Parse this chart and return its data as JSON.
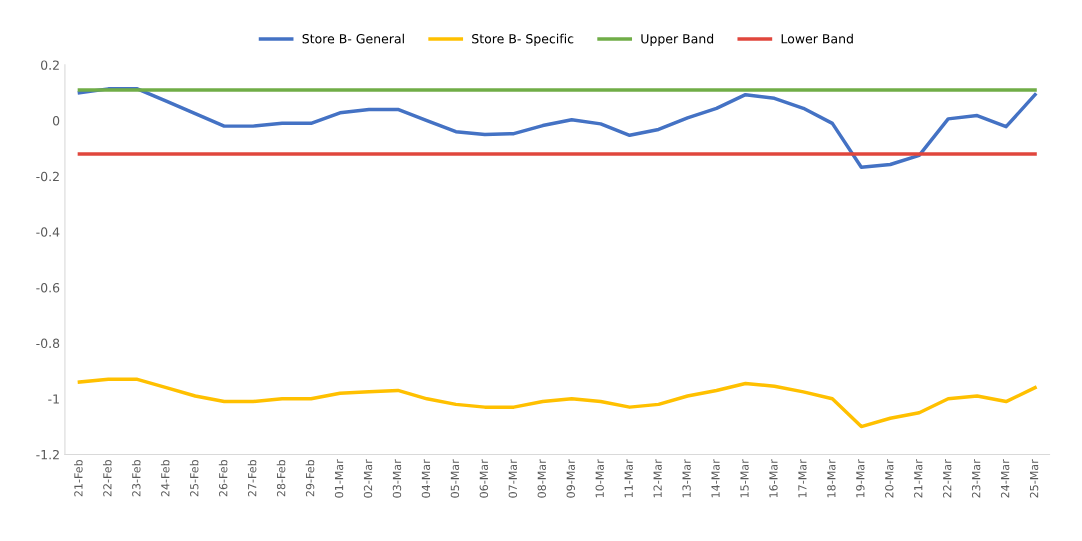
{
  "chart_data": {
    "type": "line",
    "categories": [
      "21-Feb",
      "22-Feb",
      "23-Feb",
      "24-Feb",
      "25-Feb",
      "26-Feb",
      "27-Feb",
      "28-Feb",
      "29-Feb",
      "01-Mar",
      "02-Mar",
      "03-Mar",
      "04-Mar",
      "05-Mar",
      "06-Mar",
      "07-Mar",
      "08-Mar",
      "09-Mar",
      "10-Mar",
      "11-Mar",
      "12-Mar",
      "13-Mar",
      "14-Mar",
      "15-Mar",
      "16-Mar",
      "17-Mar",
      "18-Mar",
      "19-Mar",
      "20-Mar",
      "21-Mar",
      "22-Mar",
      "23-Mar",
      "24-Mar",
      "25-Mar"
    ],
    "series": [
      {
        "name": "Store B- General",
        "color": "#4472c4",
        "values": [
          0.1,
          0.114,
          0.114,
          0.07,
          0.025,
          -0.02,
          -0.02,
          -0.01,
          -0.01,
          0.028,
          0.04,
          0.04,
          0,
          -0.04,
          -0.05,
          -0.047,
          -0.018,
          0.003,
          -0.012,
          -0.053,
          -0.032,
          0.01,
          0.044,
          0.093,
          0.08,
          0.044,
          -0.01,
          -0.168,
          -0.158,
          -0.125,
          0.006,
          0.018,
          -0.022,
          0.093
        ]
      },
      {
        "name": "Store B- Specific",
        "color": "#ffc000",
        "values": [
          -0.94,
          -0.93,
          -0.93,
          -0.96,
          -0.99,
          -1.01,
          -1.01,
          -1.0,
          -1.0,
          -0.98,
          -0.975,
          -0.97,
          -1.0,
          -1.02,
          -1.03,
          -1.03,
          -1.01,
          -1.0,
          -1.01,
          -1.03,
          -1.02,
          -0.99,
          -0.97,
          -0.945,
          -0.955,
          -0.975,
          -1.0,
          -1.1,
          -1.07,
          -1.05,
          -1.0,
          -0.99,
          -1.01,
          -0.96
        ]
      },
      {
        "name": "Upper Band",
        "color": "#70ad47",
        "values": [
          0.11,
          0.11,
          0.11,
          0.11,
          0.11,
          0.11,
          0.11,
          0.11,
          0.11,
          0.11,
          0.11,
          0.11,
          0.11,
          0.11,
          0.11,
          0.11,
          0.11,
          0.11,
          0.11,
          0.11,
          0.11,
          0.11,
          0.11,
          0.11,
          0.11,
          0.11,
          0.11,
          0.11,
          0.11,
          0.11,
          0.11,
          0.11,
          0.11,
          0.11
        ]
      },
      {
        "name": "Lower Band",
        "color": "#e0463c",
        "values": [
          -0.12,
          -0.12,
          -0.12,
          -0.12,
          -0.12,
          -0.12,
          -0.12,
          -0.12,
          -0.12,
          -0.12,
          -0.12,
          -0.12,
          -0.12,
          -0.12,
          -0.12,
          -0.12,
          -0.12,
          -0.12,
          -0.12,
          -0.12,
          -0.12,
          -0.12,
          -0.12,
          -0.12,
          -0.12,
          -0.12,
          -0.12,
          -0.12,
          -0.12,
          -0.12,
          -0.12,
          -0.12,
          -0.12,
          -0.12
        ]
      }
    ],
    "ylim": [
      -1.2,
      0.2
    ],
    "yticks": [
      -1.2,
      -1,
      -0.8,
      -0.6,
      -0.4,
      -0.2,
      0,
      0.2
    ],
    "legend": "top",
    "grid": false,
    "marker": "none",
    "line_style": "solid"
  }
}
